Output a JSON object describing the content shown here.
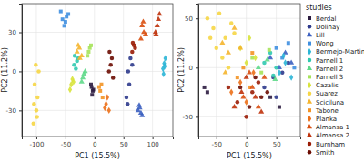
{
  "chart_data": [
    {
      "type": "scatter",
      "xlabel": "PC1 (15.5%)",
      "ylabel": "PC2 (11.2%)",
      "xlim": [
        -125,
        135
      ],
      "ylim": [
        -50,
        52
      ],
      "xticks": [
        -100,
        -50,
        0,
        50,
        100
      ],
      "yticks": [
        -30,
        0,
        30
      ],
      "grid": true,
      "series": [
        {
          "color": "#2b1b3f",
          "marker": "square",
          "x": [
            -5,
            -3,
            -6,
            -4,
            -2
          ],
          "values": [
            -12,
            -15,
            -10,
            -18,
            -14
          ]
        },
        {
          "color": "#2e3a8c",
          "marker": "circle",
          "x": [
            55,
            60,
            58,
            62,
            57,
            65
          ],
          "values": [
            -20,
            -10,
            0,
            10,
            -25,
            5
          ]
        },
        {
          "color": "#3b5fc0",
          "marker": "triangle",
          "x": [
            75,
            78,
            80,
            77,
            82
          ],
          "values": [
            -30,
            -28,
            -32,
            -26,
            -34
          ]
        },
        {
          "color": "#3f8fe0",
          "marker": "square",
          "x": [
            -55,
            -50,
            -45,
            -52,
            -48,
            -58
          ],
          "values": [
            40,
            38,
            44,
            35,
            42,
            46
          ]
        },
        {
          "color": "#2ab5d6",
          "marker": "diamond",
          "x": [
            118,
            120,
            122,
            119,
            121
          ],
          "values": [
            2,
            6,
            10,
            -2,
            4
          ]
        },
        {
          "color": "#30c9b0",
          "marker": "circle",
          "x": [
            -35,
            -30,
            -32,
            -28,
            -34
          ],
          "values": [
            5,
            8,
            2,
            10,
            12
          ]
        },
        {
          "color": "#5fd98a",
          "marker": "triangle",
          "x": [
            -20,
            -18,
            -22,
            -16
          ],
          "values": [
            -5,
            -2,
            -8,
            0
          ]
        },
        {
          "color": "#a6e35a",
          "marker": "square",
          "x": [
            -10,
            -8,
            -12,
            -6
          ],
          "values": [
            15,
            18,
            12,
            20
          ]
        },
        {
          "color": "#d8e33a",
          "marker": "diamond",
          "x": [
            -40,
            -38,
            -42,
            -36
          ],
          "values": [
            -10,
            -6,
            -14,
            -8
          ]
        },
        {
          "color": "#f6d645",
          "marker": "circle",
          "x": [
            -105,
            -100,
            -98,
            -103,
            -96,
            -101,
            -99,
            -104
          ],
          "values": [
            -40,
            -30,
            -20,
            -10,
            0,
            5,
            -35,
            -25
          ]
        },
        {
          "color": "#f5b52e",
          "marker": "triangle",
          "x": [
            -30,
            -25,
            -28,
            -22,
            -26
          ],
          "values": [
            15,
            10,
            20,
            12,
            18
          ]
        },
        {
          "color": "#f39425",
          "marker": "square",
          "x": [
            10,
            12,
            14,
            8
          ],
          "values": [
            -15,
            -10,
            -20,
            -12
          ]
        },
        {
          "color": "#ec7018",
          "marker": "diamond",
          "x": [
            20,
            22,
            25,
            18
          ],
          "values": [
            -25,
            -20,
            -30,
            -28
          ]
        },
        {
          "color": "#d94f10",
          "marker": "triangle",
          "x": [
            80,
            85,
            82,
            88,
            84
          ],
          "values": [
            25,
            30,
            35,
            28,
            38
          ]
        },
        {
          "color": "#bf320b",
          "marker": "triangle",
          "x": [
            105,
            108,
            110,
            106,
            112
          ],
          "values": [
            30,
            35,
            40,
            28,
            44
          ]
        },
        {
          "color": "#9a1c06",
          "marker": "circle",
          "x": [
            65,
            68,
            70,
            66
          ],
          "values": [
            15,
            20,
            18,
            22
          ]
        },
        {
          "color": "#6b0c02",
          "marker": "circle",
          "x": [
            25,
            28,
            30,
            26,
            32
          ],
          "values": [
            0,
            5,
            10,
            15,
            -5
          ]
        }
      ]
    },
    {
      "type": "scatter",
      "xlabel": "PC1 (15.5%)",
      "ylabel": "PC2 (11.2%)",
      "xlim": [
        -80,
        90
      ],
      "ylim": [
        -70,
        65
      ],
      "xticks": [
        -50,
        0,
        50
      ],
      "yticks": [
        -50,
        0,
        50
      ],
      "grid": true,
      "legend": "right",
      "legend_title": "studies",
      "series": [
        {
          "name": "Berdal",
          "color": "#2b1b3f",
          "marker": "square",
          "x": [
            -70,
            -65,
            40,
            55
          ],
          "values": [
            -20,
            -25,
            -30,
            -40
          ]
        },
        {
          "name": "Dolinay",
          "color": "#2e3a8c",
          "marker": "circle",
          "x": [
            30,
            45,
            60,
            70,
            50
          ],
          "values": [
            -20,
            -10,
            -5,
            5,
            -30
          ]
        },
        {
          "name": "Lill",
          "color": "#3b5fc0",
          "marker": "triangle",
          "x": [
            40,
            55,
            65,
            75
          ],
          "values": [
            10,
            0,
            15,
            5
          ]
        },
        {
          "name": "Wong",
          "color": "#3f8fe0",
          "marker": "square",
          "x": [
            50,
            60,
            70,
            80
          ],
          "values": [
            20,
            10,
            25,
            0
          ]
        },
        {
          "name": "Bermejo-Martin",
          "color": "#2ab5d6",
          "marker": "diamond",
          "x": [
            55,
            65,
            75,
            62
          ],
          "values": [
            -5,
            5,
            -10,
            12
          ]
        },
        {
          "name": "Parnell 1",
          "color": "#30c9b0",
          "marker": "circle",
          "x": [
            30,
            40,
            50,
            45
          ],
          "values": [
            5,
            15,
            0,
            -8
          ]
        },
        {
          "name": "Parnell 2",
          "color": "#5fd98a",
          "marker": "triangle",
          "x": [
            20,
            35,
            48
          ],
          "values": [
            0,
            8,
            -12
          ]
        },
        {
          "name": "Parnell 3",
          "color": "#a6e35a",
          "marker": "square",
          "x": [
            10,
            25,
            38
          ],
          "values": [
            10,
            -5,
            18
          ]
        },
        {
          "name": "Cazalis",
          "color": "#d8e33a",
          "marker": "diamond",
          "x": [
            -10,
            5,
            15,
            0
          ],
          "values": [
            20,
            30,
            10,
            5
          ]
        },
        {
          "name": "Suarez",
          "color": "#f6d645",
          "marker": "circle",
          "x": [
            -65,
            -55,
            -45,
            -35,
            -25,
            -50,
            -40,
            -20,
            -60,
            -30
          ],
          "values": [
            50,
            40,
            55,
            30,
            45,
            20,
            10,
            35,
            30,
            0
          ]
        },
        {
          "name": "Sciciluna",
          "color": "#f5b52e",
          "marker": "triangle",
          "x": [
            -40,
            -30,
            -20,
            -10,
            -35
          ],
          "values": [
            25,
            15,
            40,
            20,
            -5
          ]
        },
        {
          "name": "Tabone",
          "color": "#f39425",
          "marker": "square",
          "x": [
            -15,
            -5,
            5,
            10
          ],
          "values": [
            -10,
            0,
            -20,
            15
          ]
        },
        {
          "name": "Planka",
          "color": "#ec7018",
          "marker": "diamond",
          "x": [
            -25,
            -10,
            0,
            12
          ],
          "values": [
            -25,
            -15,
            -35,
            -5
          ]
        },
        {
          "name": "Almansa 1",
          "color": "#d94f10",
          "marker": "triangle",
          "x": [
            -5,
            10,
            20,
            30,
            5
          ],
          "values": [
            -30,
            -20,
            -40,
            -10,
            -5
          ]
        },
        {
          "name": "Almansa 2",
          "color": "#bf320b",
          "marker": "triangle",
          "x": [
            -20,
            -8,
            15,
            25,
            0
          ],
          "values": [
            -40,
            -25,
            -30,
            -45,
            -10
          ]
        },
        {
          "name": "Burnham",
          "color": "#9a1c06",
          "marker": "circle",
          "x": [
            -15,
            0,
            10,
            20,
            -30
          ],
          "values": [
            -35,
            -50,
            -25,
            -15,
            -20
          ]
        },
        {
          "name": "Smith",
          "color": "#6b0c02",
          "marker": "circle",
          "x": [
            -10,
            5,
            15,
            25,
            35
          ],
          "values": [
            -20,
            -40,
            -10,
            -30,
            -25
          ]
        }
      ]
    }
  ]
}
